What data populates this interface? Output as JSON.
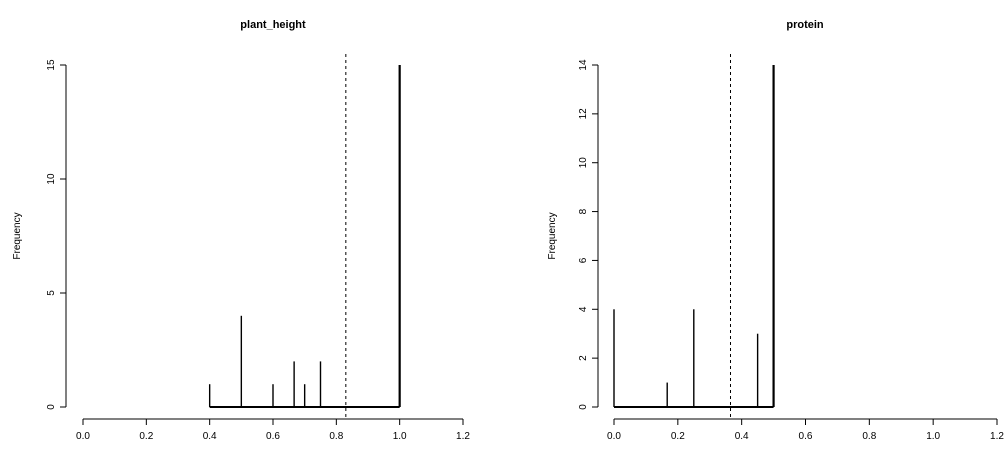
{
  "chart_data": [
    {
      "type": "bar",
      "title": "plant_height",
      "xlabel": "",
      "ylabel": "Frequency",
      "xlim": [
        0,
        1.2
      ],
      "ylim": [
        0,
        15
      ],
      "xticks": [
        "0.0",
        "0.2",
        "0.4",
        "0.6",
        "0.8",
        "1.0",
        "1.2"
      ],
      "yticks": [
        "0",
        "5",
        "10",
        "15"
      ],
      "x": [
        0.4,
        0.5,
        0.6,
        0.6667,
        0.7,
        0.75,
        1.0
      ],
      "values": [
        1,
        4,
        1,
        2,
        1,
        2,
        15
      ],
      "baseline": [
        0.4,
        1.0
      ],
      "reference_line": 0.83,
      "reference_style": "dashed"
    },
    {
      "type": "bar",
      "title": "protein",
      "xlabel": "",
      "ylabel": "Frequency",
      "xlim": [
        0,
        1.2
      ],
      "ylim": [
        0,
        14
      ],
      "xticks": [
        "0.0",
        "0.2",
        "0.4",
        "0.6",
        "0.8",
        "1.0",
        "1.2"
      ],
      "yticks": [
        "0",
        "2",
        "4",
        "6",
        "8",
        "10",
        "12",
        "14"
      ],
      "x": [
        0.0,
        0.1667,
        0.25,
        0.45,
        0.5
      ],
      "values": [
        4,
        1,
        4,
        3,
        14
      ],
      "baseline": [
        0.0,
        0.5
      ],
      "reference_line": 0.365,
      "reference_style": "dashed"
    }
  ]
}
